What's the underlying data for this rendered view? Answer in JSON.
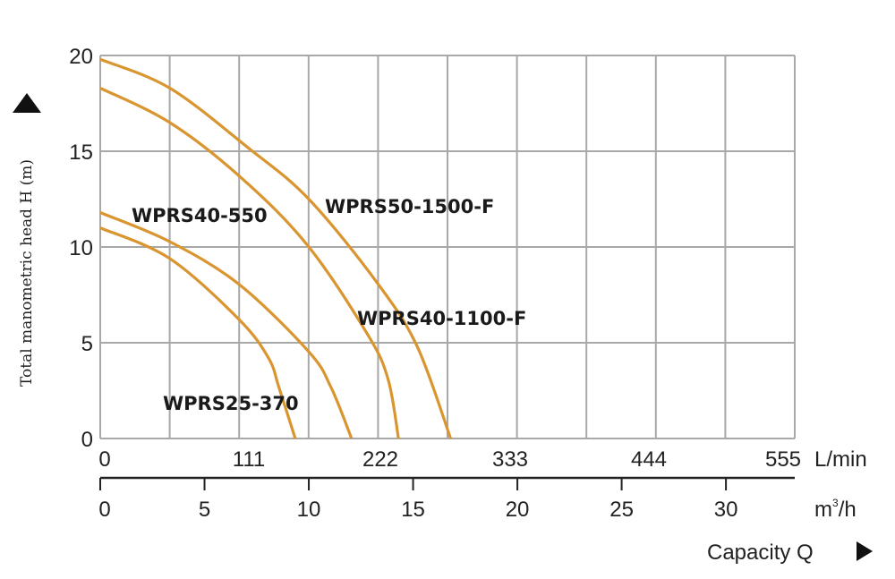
{
  "chart_data": {
    "type": "line",
    "ylabel": "Total manometric head H (m)",
    "xlabel": "Capacity Q",
    "ylim": [
      0,
      20
    ],
    "yticks": [
      "0",
      "5",
      "10",
      "15",
      "20"
    ],
    "xlim_m3h": [
      0,
      33.3
    ],
    "x_lmin_ticks": [
      "0",
      "111",
      "222",
      "333",
      "444",
      "555"
    ],
    "x_lmin_unit": "L/min",
    "x_m3h_ticks": [
      "0",
      "5",
      "10",
      "15",
      "20",
      "25",
      "30"
    ],
    "x_m3h_unit_base": "m",
    "x_m3h_unit_sup": "3",
    "x_m3h_unit_rest": "/h",
    "grid": true,
    "line_color": "#D9952F",
    "series": [
      {
        "name": "WPRS25-370",
        "x": [
          0,
          3.33,
          6.67,
          8.07,
          8.57,
          9.35
        ],
        "y": [
          11,
          9.4,
          6.2,
          4.2,
          2.66,
          0
        ]
      },
      {
        "name": "WPRS40-550",
        "x": [
          0,
          3.33,
          6.67,
          10,
          11.07,
          12.05
        ],
        "y": [
          11.8,
          10.28,
          8.04,
          4.53,
          2.66,
          0
        ]
      },
      {
        "name": "WPRS40-1100-F",
        "x": [
          0,
          3.33,
          6.67,
          9.9,
          12.8,
          13.8,
          14.3
        ],
        "y": [
          18.3,
          16.5,
          13.7,
          10.14,
          5.47,
          3.1,
          0
        ]
      },
      {
        "name": "WPRS50-1500-F",
        "x": [
          0,
          3.33,
          7.07,
          10,
          13.3,
          15.2,
          16.8
        ],
        "y": [
          19.8,
          18.3,
          15.2,
          12.5,
          8.1,
          4.8,
          0
        ]
      }
    ]
  }
}
